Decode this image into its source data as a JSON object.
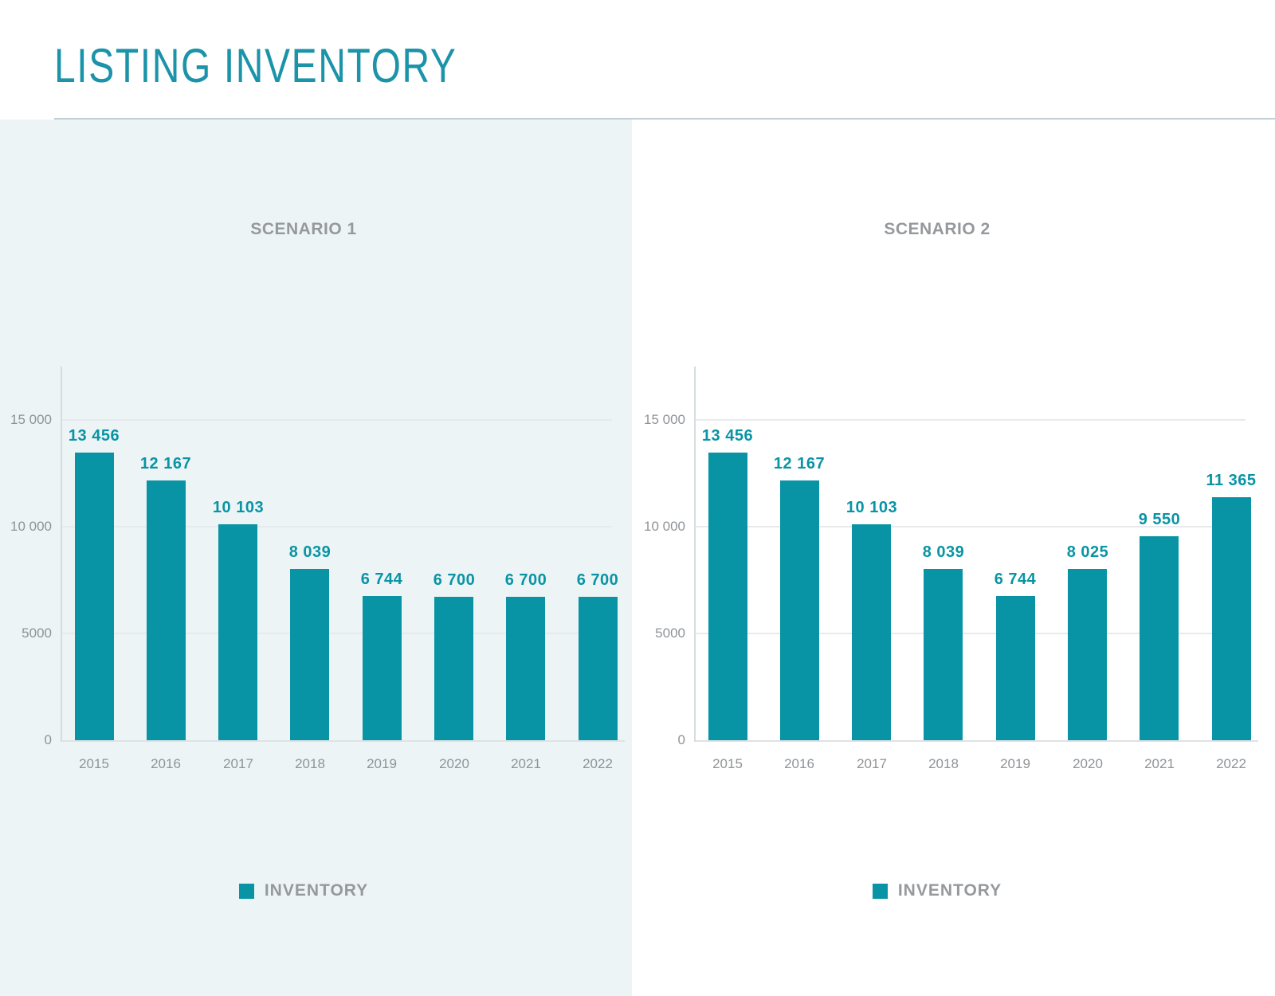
{
  "header": {
    "title": "LISTING INVENTORY"
  },
  "colors": {
    "accent_teal": "#0894a4",
    "title_teal": "#1b93a8",
    "panel_bg": "#edf4f6",
    "grid_line": "#e7eaec",
    "axis_line": "#d7dcde",
    "baseline": "#dfe2e4",
    "muted_text": "#96999c",
    "tick_text": "#8f9397",
    "divider": "#c2ced6"
  },
  "chart_data": [
    {
      "type": "bar",
      "title": "SCENARIO 1",
      "categories": [
        "2015",
        "2016",
        "2017",
        "2018",
        "2019",
        "2020",
        "2021",
        "2022"
      ],
      "series": [
        {
          "name": "INVENTORY",
          "values": [
            13456,
            12167,
            10103,
            8039,
            6744,
            6700,
            6700,
            6700
          ],
          "value_labels": [
            "13 456",
            "12 167",
            "10 103",
            "8 039",
            "6 744",
            "6 700",
            "6 700",
            "6 700"
          ]
        }
      ],
      "y_ticks": [
        {
          "label": "15 000",
          "value": 15000
        },
        {
          "label": "10 000",
          "value": 10000
        },
        {
          "label": "5000",
          "value": 5000
        },
        {
          "label": "0",
          "value": 0
        }
      ],
      "ylim": [
        0,
        17500
      ],
      "grid": "horizontal",
      "legend_position": "bottom",
      "xlabel": "",
      "ylabel": ""
    },
    {
      "type": "bar",
      "title": "SCENARIO 2",
      "categories": [
        "2015",
        "2016",
        "2017",
        "2018",
        "2019",
        "2020",
        "2021",
        "2022"
      ],
      "series": [
        {
          "name": "INVENTORY",
          "values": [
            13456,
            12167,
            10103,
            8039,
            6744,
            8025,
            9550,
            11365
          ],
          "value_labels": [
            "13 456",
            "12 167",
            "10 103",
            "8 039",
            "6 744",
            "8 025",
            "9 550",
            "11 365"
          ]
        }
      ],
      "y_ticks": [
        {
          "label": "15 000",
          "value": 15000
        },
        {
          "label": "10 000",
          "value": 10000
        },
        {
          "label": "5000",
          "value": 5000
        },
        {
          "label": "0",
          "value": 0
        }
      ],
      "ylim": [
        0,
        17500
      ],
      "grid": "horizontal",
      "legend_position": "bottom",
      "xlabel": "",
      "ylabel": ""
    }
  ]
}
